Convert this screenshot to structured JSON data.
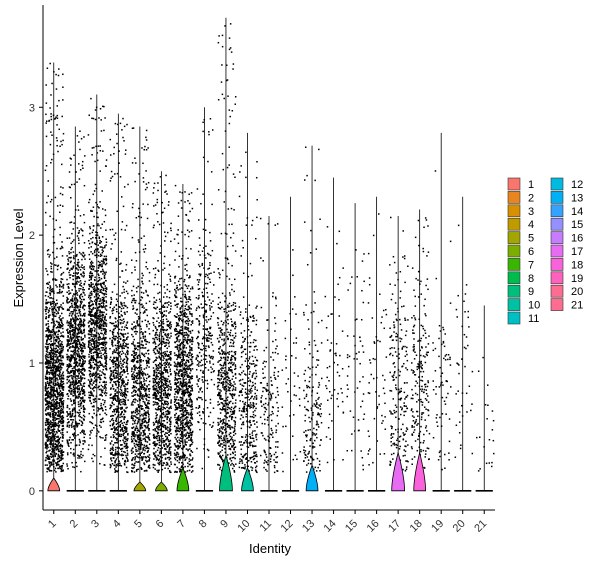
{
  "chart_data": {
    "type": "violin",
    "xlabel": "Identity",
    "ylabel": "Expression Level",
    "ylim": [
      -0.15,
      3.8
    ],
    "yticks": [
      0,
      1,
      2,
      3
    ],
    "grid": false,
    "legend_position": "right",
    "categories": [
      "1",
      "2",
      "3",
      "4",
      "5",
      "6",
      "7",
      "8",
      "9",
      "10",
      "11",
      "12",
      "13",
      "14",
      "15",
      "16",
      "17",
      "18",
      "19",
      "20",
      "21"
    ],
    "colors": [
      "#F8766D",
      "#E8851E",
      "#D89000",
      "#C09B00",
      "#A3A500",
      "#7CAE00",
      "#39B600",
      "#00BB4E",
      "#00BF7D",
      "#00C1A3",
      "#00BFC4",
      "#00BAE0",
      "#00B0F6",
      "#35A2FF",
      "#9590FF",
      "#C77CFF",
      "#E76BF3",
      "#FA62DB",
      "#FF62BC",
      "#FF6C91",
      "#FF6C91"
    ],
    "series": [
      {
        "name": "1",
        "max_y": 3.35,
        "violin_peak": 0.1,
        "violin_width": 0.55,
        "density": 1.0,
        "center": 0.8
      },
      {
        "name": "2",
        "max_y": 2.85,
        "violin_peak": 0.0,
        "violin_width": 0.0,
        "density": 0.75,
        "center": 1.1
      },
      {
        "name": "3",
        "max_y": 3.1,
        "violin_peak": 0.0,
        "violin_width": 0.0,
        "density": 0.7,
        "center": 1.3
      },
      {
        "name": "4",
        "max_y": 2.95,
        "violin_peak": 0.0,
        "violin_width": 0.0,
        "density": 0.55,
        "center": 0.8
      },
      {
        "name": "5",
        "max_y": 2.85,
        "violin_peak": 0.07,
        "violin_width": 0.55,
        "density": 0.55,
        "center": 0.75
      },
      {
        "name": "6",
        "max_y": 2.5,
        "violin_peak": 0.07,
        "violin_width": 0.55,
        "density": 0.6,
        "center": 0.8
      },
      {
        "name": "7",
        "max_y": 2.4,
        "violin_peak": 0.18,
        "violin_width": 0.55,
        "density": 0.7,
        "center": 0.85
      },
      {
        "name": "8",
        "max_y": 3.0,
        "violin_peak": 0.0,
        "violin_width": 0.0,
        "density": 0.2,
        "center": 1.2
      },
      {
        "name": "9",
        "max_y": 3.7,
        "violin_peak": 0.28,
        "violin_width": 0.6,
        "density": 0.45,
        "center": 0.8
      },
      {
        "name": "10",
        "max_y": 2.8,
        "violin_peak": 0.18,
        "violin_width": 0.55,
        "density": 0.25,
        "center": 0.7
      },
      {
        "name": "11",
        "max_y": 2.15,
        "violin_peak": 0.0,
        "violin_width": 0.0,
        "density": 0.12,
        "center": 0.6
      },
      {
        "name": "12",
        "max_y": 2.3,
        "violin_peak": 0.0,
        "violin_width": 0.0,
        "density": 0.03,
        "center": 1.0
      },
      {
        "name": "13",
        "max_y": 2.7,
        "violin_peak": 0.2,
        "violin_width": 0.55,
        "density": 0.12,
        "center": 0.6
      },
      {
        "name": "14",
        "max_y": 2.45,
        "violin_peak": 0.0,
        "violin_width": 0.0,
        "density": 0.04,
        "center": 1.0
      },
      {
        "name": "15",
        "max_y": 2.25,
        "violin_peak": 0.0,
        "violin_width": 0.0,
        "density": 0.04,
        "center": 0.9
      },
      {
        "name": "16",
        "max_y": 2.3,
        "violin_peak": 0.0,
        "violin_width": 0.0,
        "density": 0.04,
        "center": 0.9
      },
      {
        "name": "17",
        "max_y": 2.15,
        "violin_peak": 0.3,
        "violin_width": 0.6,
        "density": 0.15,
        "center": 0.8
      },
      {
        "name": "18",
        "max_y": 2.2,
        "violin_peak": 0.3,
        "violin_width": 0.55,
        "density": 0.15,
        "center": 0.8
      },
      {
        "name": "19",
        "max_y": 2.8,
        "violin_peak": 0.0,
        "violin_width": 0.0,
        "density": 0.05,
        "center": 0.8
      },
      {
        "name": "20",
        "max_y": 2.3,
        "violin_peak": 0.0,
        "violin_width": 0.0,
        "density": 0.03,
        "center": 1.0
      },
      {
        "name": "21",
        "max_y": 1.45,
        "violin_peak": 0.0,
        "violin_width": 0.0,
        "density": 0.015,
        "center": 0.5
      }
    ]
  }
}
